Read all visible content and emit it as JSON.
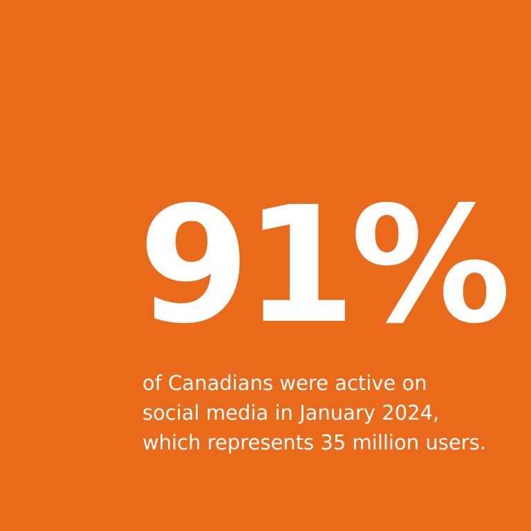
{
  "stat": {
    "value": "91%"
  },
  "caption": {
    "lines": [
      "of Canadians were active on",
      "social media in January 2024,",
      "which represents 35 million users."
    ]
  },
  "colors": {
    "background": "#e96a1a",
    "text": "#ffffff"
  }
}
